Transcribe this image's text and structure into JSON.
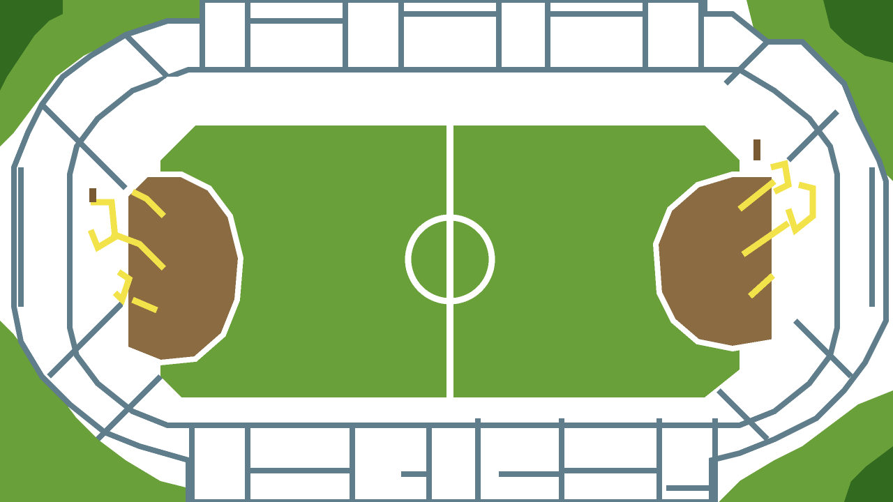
{
  "scene": {
    "name": "stadium-top-down",
    "style": "pixel-art"
  },
  "colors": {
    "grass": "#6aa039",
    "dark_grass": "#326b20",
    "outline": "#5f7d8b",
    "white": "#ffffff",
    "dirt": "#8b6b42",
    "dirt_outline": "#7a5a33",
    "yellow": "#f3e34b"
  },
  "icons": {
    "pitch_center_circle": "circle-icon",
    "goal_area_left": "dirt-patch",
    "goal_area_right": "dirt-patch"
  }
}
